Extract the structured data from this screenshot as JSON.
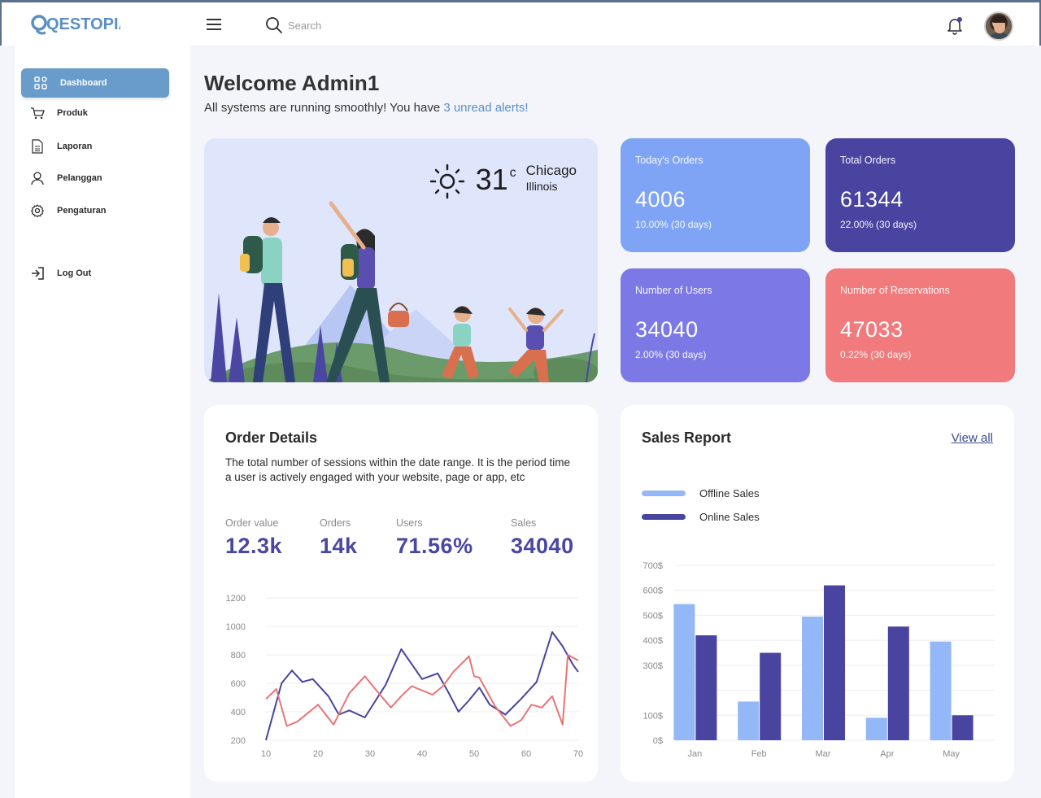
{
  "header": {
    "logo_text": "QESTOPIA",
    "search_placeholder": "Search"
  },
  "sidebar": {
    "items": [
      {
        "label": "Dashboard",
        "icon": "grid-icon",
        "active": true
      },
      {
        "label": "Produk",
        "icon": "cart-icon"
      },
      {
        "label": "Laporan",
        "icon": "document-icon"
      },
      {
        "label": "Pelanggan",
        "icon": "user-icon"
      },
      {
        "label": "Pengaturan",
        "icon": "gear-icon"
      }
    ],
    "logout_label": "Log Out"
  },
  "welcome": {
    "title": "Welcome Admin1",
    "subtitle_prefix": "All systems are running smoothly! You have ",
    "alert_link": "3 unread alerts!"
  },
  "weather": {
    "temperature": "31",
    "unit": "c",
    "city": "Chicago",
    "state": "Illinois",
    "icon": "sun-icon"
  },
  "stats": [
    {
      "label": "Today's Orders",
      "value": "4006",
      "change": "10.00% (30 days)",
      "color": "#7fa3f5"
    },
    {
      "label": "Total Orders",
      "value": "61344",
      "change": "22.00% (30 days)",
      "color": "#48449f"
    },
    {
      "label": "Number of Users",
      "value": "34040",
      "change": "2.00% (30 days)",
      "color": "#7c79e6"
    },
    {
      "label": "Number of Reservations",
      "value": "47033",
      "change": "0.22% (30 days)",
      "color": "#f07a7c"
    }
  ],
  "order_details": {
    "title": "Order Details",
    "description": "The total number of sessions within the date range. It is the period time a user is actively engaged with your website, page or app, etc",
    "metrics": [
      {
        "label": "Order value",
        "value": "12.3k"
      },
      {
        "label": "Orders",
        "value": "14k"
      },
      {
        "label": "Users",
        "value": "71.56%"
      },
      {
        "label": "Sales",
        "value": "34040"
      }
    ]
  },
  "sales_report": {
    "title": "Sales Report",
    "view_all": "View all"
  },
  "colors": {
    "accent": "#6a9ccb",
    "navy": "#48449f",
    "light_blue": "#94b8f7",
    "coral": "#e97474",
    "metric_text": "#4a47a3"
  },
  "chart_data": [
    {
      "type": "line",
      "title": "",
      "xlabel": "",
      "ylabel": "",
      "x_ticks": [
        10,
        20,
        30,
        40,
        50,
        60,
        70
      ],
      "y_ticks": [
        200,
        400,
        600,
        800,
        1000,
        1200
      ],
      "xlim": [
        10,
        70
      ],
      "ylim": [
        200,
        1200
      ],
      "grid": true,
      "series": [
        {
          "color": "#48449f",
          "x": [
            10,
            13,
            15,
            17,
            19,
            22,
            24,
            26,
            29,
            33,
            36,
            40,
            43,
            45,
            47,
            49,
            51,
            53,
            56,
            59,
            62,
            65,
            67,
            69,
            70
          ],
          "y": [
            200,
            600,
            690,
            610,
            630,
            510,
            380,
            410,
            360,
            590,
            840,
            630,
            670,
            540,
            400,
            480,
            570,
            450,
            380,
            490,
            610,
            960,
            860,
            730,
            680
          ]
        },
        {
          "color": "#e97474",
          "x": [
            10,
            12,
            14,
            16,
            20,
            23,
            26,
            29,
            31,
            34,
            36,
            38,
            42,
            44,
            46,
            49,
            50,
            51,
            54,
            57,
            59,
            61,
            63,
            65,
            67,
            68,
            70
          ],
          "y": [
            490,
            560,
            300,
            330,
            450,
            310,
            530,
            650,
            560,
            430,
            510,
            580,
            520,
            580,
            680,
            790,
            650,
            640,
            440,
            300,
            340,
            450,
            430,
            510,
            310,
            800,
            760
          ]
        }
      ]
    },
    {
      "type": "bar",
      "title": "",
      "categories": [
        "Jan",
        "Feb",
        "Mar",
        "Apr",
        "May"
      ],
      "y_ticks": [
        "0$",
        "100$",
        "300$",
        "400$",
        "500$",
        "600$",
        "700$"
      ],
      "ylim": [
        0,
        700
      ],
      "grid": true,
      "legend": "top-left",
      "series": [
        {
          "name": "Offline Sales",
          "color": "#94b8f7",
          "values": [
            545,
            155,
            495,
            90,
            395
          ]
        },
        {
          "name": "Online Sales",
          "color": "#48449f",
          "values": [
            420,
            350,
            620,
            455,
            100
          ]
        }
      ]
    }
  ]
}
